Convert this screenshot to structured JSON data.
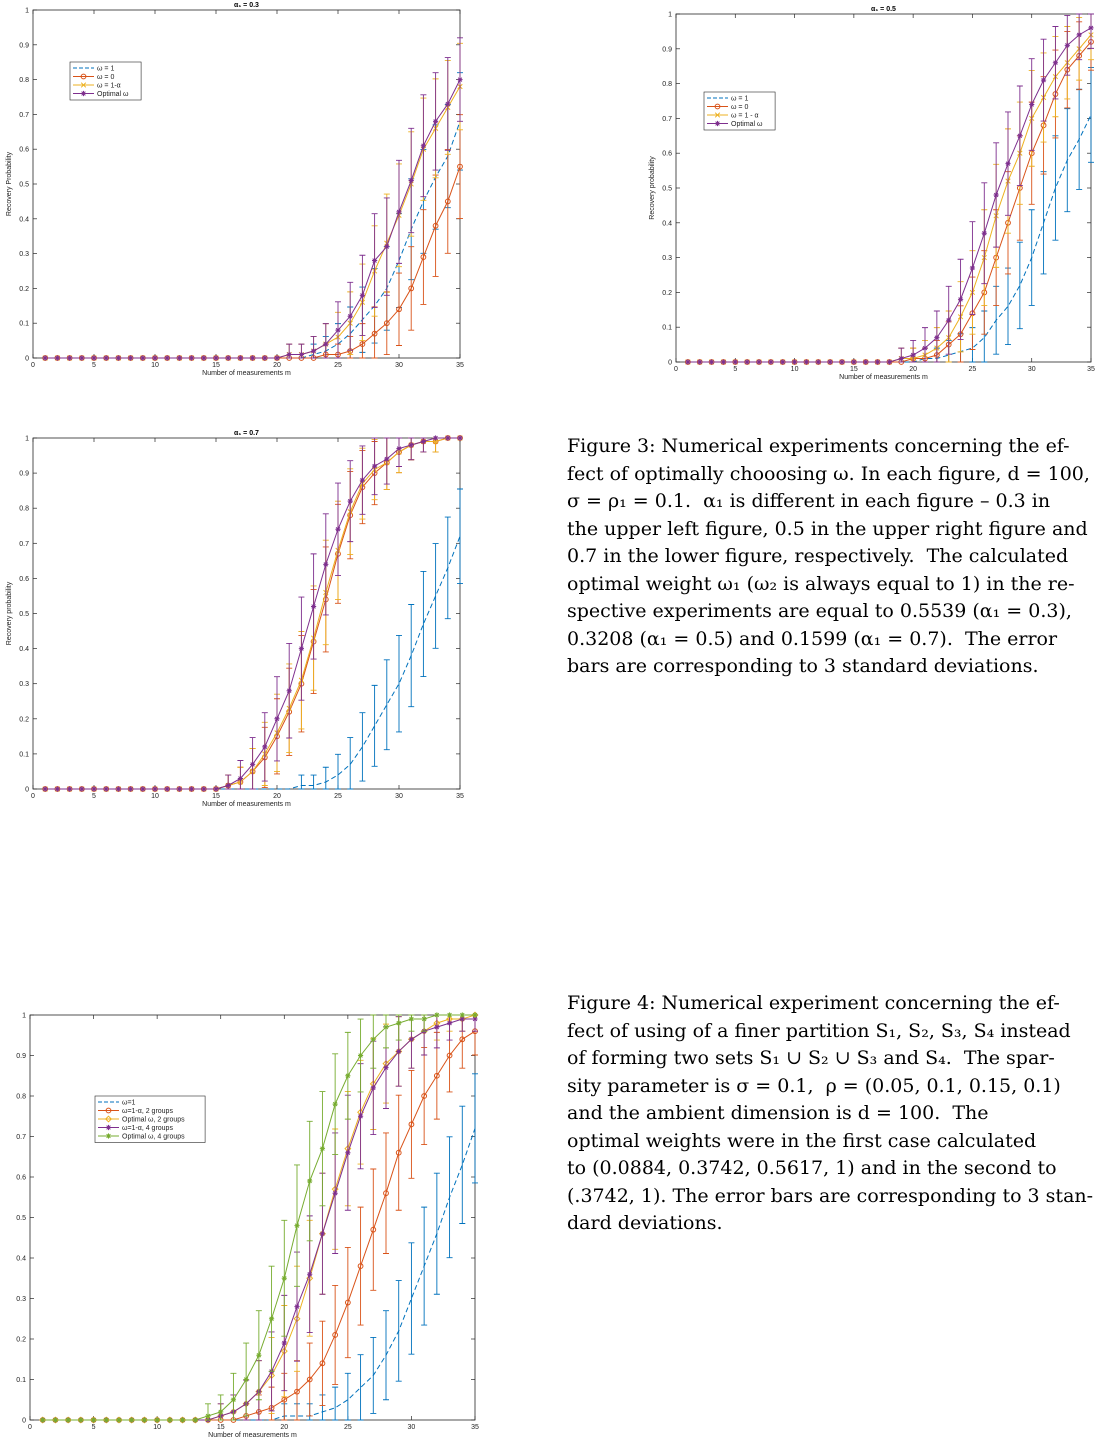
{
  "figure3": {
    "caption": "Figure 3: Numerical experiments concerning the ef-\nfect of optimally chooosing ω. In each figure, d = 100,\nσ = ρ₁ = 0.1.  α₁ is different in each figure – 0.3 in\nthe upper left figure, 0.5 in the upper right figure and\n0.7 in the lower figure, respectively.  The calculated\noptimal weight ω₁ (ω₂ is always equal to 1) in the re-\nspective experiments are equal to 0.5539 (α₁ = 0.3),\n0.3208 (α₁ = 0.5) and 0.1599 (α₁ = 0.7).  The error\nbars are corresponding to 3 standard deviations."
  },
  "figure4": {
    "caption": "Figure 4: Numerical experiment concerning the ef-\nfect of using of a finer partition S₁, S₂, S₃, S₄ instead\nof forming two sets S₁ ∪ S₂ ∪ S₃ and S₄.  The spar-\nsity parameter is σ = 0.1,  ρ = (0.05, 0.1, 0.15, 0.1)\nand the ambient dimension is d = 100.  The\noptimal weights were in the first case calculated\nto (0.0884, 0.3742, 0.5617, 1) and in the second to\n(.3742, 1). The error bars are corresponding to 3 stan-\ndard deviations."
  },
  "chart_data": [
    {
      "type": "line",
      "title": "α₁ = 0.3",
      "xlabel": "Number of measurements m",
      "ylabel": "Recovery Probability",
      "xlim": [
        0,
        35
      ],
      "ylim": [
        0,
        1
      ],
      "xticks": [
        0,
        5,
        10,
        15,
        20,
        25,
        30,
        35
      ],
      "yticks": [
        0,
        0.1,
        0.2,
        0.3,
        0.4,
        0.5,
        0.6,
        0.7,
        0.8,
        0.9,
        1
      ],
      "legend_position": "top-left",
      "x": [
        1,
        2,
        3,
        4,
        5,
        6,
        7,
        8,
        9,
        10,
        11,
        12,
        13,
        14,
        15,
        16,
        17,
        18,
        19,
        20,
        21,
        22,
        23,
        24,
        25,
        26,
        27,
        28,
        29,
        30,
        31,
        32,
        33,
        34,
        35
      ],
      "series": [
        {
          "name": "ω = 1",
          "color": "#0072BD",
          "dash": true,
          "marker": "none",
          "values": [
            0,
            0,
            0,
            0,
            0,
            0,
            0,
            0,
            0,
            0,
            0,
            0,
            0,
            0,
            0,
            0,
            0,
            0,
            0,
            0,
            0,
            0,
            0.01,
            0.02,
            0.04,
            0.07,
            0.11,
            0.15,
            0.2,
            0.28,
            0.37,
            0.45,
            0.52,
            0.58,
            0.68
          ]
        },
        {
          "name": "ω = 0",
          "color": "#D95319",
          "dash": false,
          "marker": "o",
          "values": [
            0,
            0,
            0,
            0,
            0,
            0,
            0,
            0,
            0,
            0,
            0,
            0,
            0,
            0,
            0,
            0,
            0,
            0,
            0,
            0,
            0,
            0,
            0,
            0.01,
            0.01,
            0.02,
            0.04,
            0.07,
            0.1,
            0.14,
            0.2,
            0.29,
            0.38,
            0.45,
            0.55
          ]
        },
        {
          "name": "ω = 1-α",
          "color": "#EDB120",
          "dash": false,
          "marker": "x",
          "values": [
            0,
            0,
            0,
            0,
            0,
            0,
            0,
            0,
            0,
            0,
            0,
            0,
            0,
            0,
            0,
            0,
            0,
            0,
            0,
            0,
            0.01,
            0.01,
            0.02,
            0.04,
            0.06,
            0.1,
            0.16,
            0.25,
            0.33,
            0.41,
            0.5,
            0.6,
            0.66,
            0.72,
            0.78
          ]
        },
        {
          "name": "Optimal ω",
          "color": "#7E2F8E",
          "dash": false,
          "marker": "*",
          "values": [
            0,
            0,
            0,
            0,
            0,
            0,
            0,
            0,
            0,
            0,
            0,
            0,
            0,
            0,
            0,
            0,
            0,
            0,
            0,
            0,
            0.01,
            0.01,
            0.02,
            0.04,
            0.08,
            0.12,
            0.18,
            0.28,
            0.32,
            0.42,
            0.51,
            0.61,
            0.68,
            0.73,
            0.8
          ]
        }
      ]
    },
    {
      "type": "line",
      "title": "α₁ = 0.5",
      "xlabel": "Number of measurements m",
      "ylabel": "Recovery probability",
      "xlim": [
        0,
        35
      ],
      "ylim": [
        0,
        1
      ],
      "xticks": [
        0,
        5,
        10,
        15,
        20,
        25,
        30,
        35
      ],
      "yticks": [
        0,
        0.1,
        0.2,
        0.3,
        0.4,
        0.5,
        0.6,
        0.7,
        0.8,
        0.9,
        1
      ],
      "legend_position": "left",
      "x": [
        1,
        2,
        3,
        4,
        5,
        6,
        7,
        8,
        9,
        10,
        11,
        12,
        13,
        14,
        15,
        16,
        17,
        18,
        19,
        20,
        21,
        22,
        23,
        24,
        25,
        26,
        27,
        28,
        29,
        30,
        31,
        32,
        33,
        34,
        35
      ],
      "series": [
        {
          "name": "ω = 1",
          "color": "#0072BD",
          "dash": true,
          "marker": "none",
          "values": [
            0,
            0,
            0,
            0,
            0,
            0,
            0,
            0,
            0,
            0,
            0,
            0,
            0,
            0,
            0,
            0,
            0,
            0,
            0,
            0,
            0.01,
            0.01,
            0.02,
            0.03,
            0.04,
            0.07,
            0.12,
            0.16,
            0.22,
            0.3,
            0.4,
            0.5,
            0.58,
            0.64,
            0.71
          ]
        },
        {
          "name": "ω = 0",
          "color": "#D95319",
          "dash": false,
          "marker": "o",
          "values": [
            0,
            0,
            0,
            0,
            0,
            0,
            0,
            0,
            0,
            0,
            0,
            0,
            0,
            0,
            0,
            0,
            0,
            0,
            0,
            0.01,
            0.01,
            0.02,
            0.05,
            0.08,
            0.14,
            0.2,
            0.3,
            0.4,
            0.5,
            0.6,
            0.68,
            0.77,
            0.84,
            0.88,
            0.92
          ]
        },
        {
          "name": "ω = 1 - α",
          "color": "#EDB120",
          "dash": false,
          "marker": "x",
          "values": [
            0,
            0,
            0,
            0,
            0,
            0,
            0,
            0,
            0,
            0,
            0,
            0,
            0,
            0,
            0,
            0,
            0,
            0,
            0.01,
            0.01,
            0.02,
            0.04,
            0.07,
            0.13,
            0.2,
            0.3,
            0.42,
            0.52,
            0.6,
            0.7,
            0.76,
            0.82,
            0.86,
            0.9,
            0.94
          ]
        },
        {
          "name": "Optimal ω",
          "color": "#7E2F8E",
          "dash": false,
          "marker": "*",
          "values": [
            0,
            0,
            0,
            0,
            0,
            0,
            0,
            0,
            0,
            0,
            0,
            0,
            0,
            0,
            0,
            0,
            0,
            0,
            0.01,
            0.02,
            0.04,
            0.07,
            0.12,
            0.18,
            0.27,
            0.37,
            0.48,
            0.57,
            0.65,
            0.74,
            0.81,
            0.86,
            0.91,
            0.94,
            0.96
          ]
        }
      ]
    },
    {
      "type": "line",
      "title": "α₁ = 0.7",
      "xlabel": "Number of measurements m",
      "ylabel": "Recovery probability",
      "xlim": [
        0,
        35
      ],
      "ylim": [
        0,
        1
      ],
      "xticks": [
        0,
        5,
        10,
        15,
        20,
        25,
        30,
        35
      ],
      "yticks": [
        0,
        0.1,
        0.2,
        0.3,
        0.4,
        0.5,
        0.6,
        0.7,
        0.8,
        0.9,
        1
      ],
      "legend_position": "none",
      "x": [
        1,
        2,
        3,
        4,
        5,
        6,
        7,
        8,
        9,
        10,
        11,
        12,
        13,
        14,
        15,
        16,
        17,
        18,
        19,
        20,
        21,
        22,
        23,
        24,
        25,
        26,
        27,
        28,
        29,
        30,
        31,
        32,
        33,
        34,
        35
      ],
      "series": [
        {
          "name": "ω = 1",
          "color": "#0072BD",
          "dash": true,
          "marker": "none",
          "values": [
            0,
            0,
            0,
            0,
            0,
            0,
            0,
            0,
            0,
            0,
            0,
            0,
            0,
            0,
            0,
            0,
            0,
            0,
            0,
            0,
            0,
            0.01,
            0.01,
            0.02,
            0.04,
            0.07,
            0.12,
            0.18,
            0.24,
            0.3,
            0.38,
            0.47,
            0.55,
            0.63,
            0.72
          ]
        },
        {
          "name": "ω = 0",
          "color": "#D95319",
          "dash": false,
          "marker": "o",
          "values": [
            0,
            0,
            0,
            0,
            0,
            0,
            0,
            0,
            0,
            0,
            0,
            0,
            0,
            0,
            0,
            0.01,
            0.02,
            0.05,
            0.09,
            0.15,
            0.22,
            0.3,
            0.42,
            0.54,
            0.67,
            0.78,
            0.86,
            0.9,
            0.93,
            0.96,
            0.98,
            0.99,
            0.99,
            1,
            1
          ]
        },
        {
          "name": "ω = 1-α",
          "color": "#EDB120",
          "dash": false,
          "marker": "x",
          "values": [
            0,
            0,
            0,
            0,
            0,
            0,
            0,
            0,
            0,
            0,
            0,
            0,
            0,
            0,
            0,
            0.01,
            0.02,
            0.05,
            0.1,
            0.16,
            0.23,
            0.31,
            0.43,
            0.56,
            0.68,
            0.79,
            0.87,
            0.91,
            0.93,
            0.96,
            0.98,
            0.99,
            0.99,
            1,
            1
          ]
        },
        {
          "name": "Optimal ω",
          "color": "#7E2F8E",
          "dash": false,
          "marker": "*",
          "values": [
            0,
            0,
            0,
            0,
            0,
            0,
            0,
            0,
            0,
            0,
            0,
            0,
            0,
            0,
            0,
            0.01,
            0.03,
            0.07,
            0.12,
            0.2,
            0.28,
            0.4,
            0.52,
            0.64,
            0.74,
            0.82,
            0.88,
            0.92,
            0.94,
            0.97,
            0.98,
            0.99,
            1,
            1,
            1
          ]
        }
      ]
    },
    {
      "type": "line",
      "title": "",
      "xlabel": "Number of measurements m",
      "ylabel": "",
      "xlim": [
        0,
        35
      ],
      "ylim": [
        0,
        1
      ],
      "xticks": [
        0,
        5,
        10,
        15,
        20,
        25,
        30,
        35
      ],
      "yticks": [
        0,
        0.1,
        0.2,
        0.3,
        0.4,
        0.5,
        0.6,
        0.7,
        0.8,
        0.9,
        1
      ],
      "legend_position": "left",
      "x": [
        1,
        2,
        3,
        4,
        5,
        6,
        7,
        8,
        9,
        10,
        11,
        12,
        13,
        14,
        15,
        16,
        17,
        18,
        19,
        20,
        21,
        22,
        23,
        24,
        25,
        26,
        27,
        28,
        29,
        30,
        31,
        32,
        33,
        34,
        35
      ],
      "series": [
        {
          "name": "ω=1",
          "color": "#0072BD",
          "dash": true,
          "marker": "none",
          "values": [
            0,
            0,
            0,
            0,
            0,
            0,
            0,
            0,
            0,
            0,
            0,
            0,
            0,
            0,
            0,
            0,
            0,
            0,
            0,
            0.01,
            0.01,
            0.01,
            0.02,
            0.03,
            0.05,
            0.08,
            0.11,
            0.16,
            0.22,
            0.3,
            0.38,
            0.46,
            0.55,
            0.63,
            0.72
          ]
        },
        {
          "name": "ω=1-α, 2 groups",
          "color": "#D95319",
          "dash": false,
          "marker": "o",
          "values": [
            0,
            0,
            0,
            0,
            0,
            0,
            0,
            0,
            0,
            0,
            0,
            0,
            0,
            0,
            0,
            0,
            0.01,
            0.02,
            0.03,
            0.05,
            0.07,
            0.1,
            0.14,
            0.21,
            0.29,
            0.38,
            0.47,
            0.56,
            0.66,
            0.73,
            0.8,
            0.85,
            0.9,
            0.94,
            0.96
          ]
        },
        {
          "name": "Optimal ω, 2 groups",
          "color": "#EDB120",
          "dash": false,
          "marker": "d",
          "values": [
            0,
            0,
            0,
            0,
            0,
            0,
            0,
            0,
            0,
            0,
            0,
            0,
            0,
            0,
            0.01,
            0.02,
            0.04,
            0.07,
            0.11,
            0.17,
            0.25,
            0.35,
            0.46,
            0.57,
            0.67,
            0.76,
            0.83,
            0.88,
            0.91,
            0.94,
            0.96,
            0.98,
            0.99,
            0.99,
            1
          ]
        },
        {
          "name": "ω=1-α, 4 groups",
          "color": "#7E2F8E",
          "dash": false,
          "marker": "*",
          "values": [
            0,
            0,
            0,
            0,
            0,
            0,
            0,
            0,
            0,
            0,
            0,
            0,
            0,
            0,
            0.01,
            0.02,
            0.04,
            0.07,
            0.12,
            0.19,
            0.28,
            0.36,
            0.46,
            0.56,
            0.66,
            0.75,
            0.82,
            0.87,
            0.91,
            0.94,
            0.96,
            0.97,
            0.98,
            0.99,
            0.99
          ]
        },
        {
          "name": "Optimal ω, 4 groups",
          "color": "#77AC30",
          "dash": false,
          "marker": "*",
          "values": [
            0,
            0,
            0,
            0,
            0,
            0,
            0,
            0,
            0,
            0,
            0,
            0,
            0,
            0.01,
            0.02,
            0.05,
            0.1,
            0.16,
            0.25,
            0.35,
            0.48,
            0.59,
            0.67,
            0.78,
            0.85,
            0.9,
            0.94,
            0.97,
            0.98,
            0.99,
            0.99,
            1,
            1,
            1,
            1
          ]
        }
      ]
    }
  ]
}
